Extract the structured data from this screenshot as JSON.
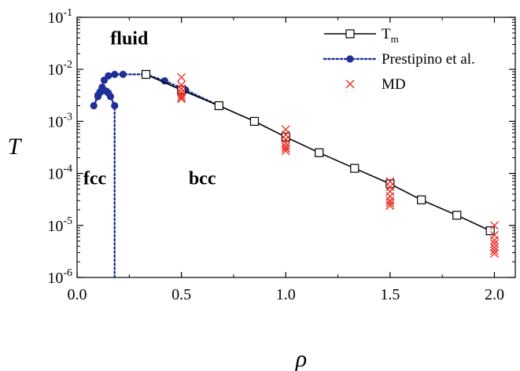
{
  "chart_data": {
    "type": "scatter",
    "xlabel": "ρ",
    "ylabel": "T",
    "xlim": [
      0.0,
      2.1
    ],
    "ylim": [
      1e-06,
      0.1
    ],
    "yscale": "log",
    "grid": false,
    "legend_position": "top-right",
    "x_ticks": [
      0.0,
      0.5,
      1.0,
      1.5,
      2.0
    ],
    "x_tick_labels": [
      "0.0",
      "0.5",
      "1.0",
      "1.5",
      "2.0"
    ],
    "y_ticks": [
      1e-06,
      1e-05,
      0.0001,
      0.001,
      0.01,
      0.1
    ],
    "y_tick_labels": [
      {
        "base": "10",
        "exp": "-6"
      },
      {
        "base": "10",
        "exp": "-5"
      },
      {
        "base": "10",
        "exp": "-4"
      },
      {
        "base": "10",
        "exp": "-3"
      },
      {
        "base": "10",
        "exp": "-2"
      },
      {
        "base": "10",
        "exp": "-1"
      }
    ],
    "annotations": [
      {
        "text": "fluid",
        "x": 0.25,
        "y": 0.03
      },
      {
        "text": "fcc",
        "x": 0.085,
        "y": 6.2e-05
      },
      {
        "text": "bcc",
        "x": 0.6,
        "y": 6.2e-05
      }
    ],
    "series": [
      {
        "name": "T",
        "name_sub": "m",
        "style": "line-open-square",
        "color": "#000000",
        "x": [
          0.33,
          0.5,
          0.68,
          0.85,
          1.0,
          1.16,
          1.33,
          1.5,
          1.65,
          1.82,
          1.98
        ],
        "y": [
          0.008,
          0.004,
          0.002,
          0.001,
          0.0005,
          0.00025,
          0.000125,
          6.3e-05,
          3.1e-05,
          1.57e-05,
          7.9e-06
        ]
      },
      {
        "name": "Prestipino et al.",
        "style": "dotted-filled-circle",
        "color": "#1f2f9a",
        "x": [
          0.18,
          0.18,
          0.16,
          0.15,
          0.14,
          0.13,
          0.12,
          0.11,
          0.1,
          0.08,
          0.1,
          0.11,
          0.12,
          0.13,
          0.15,
          0.18,
          0.22,
          0.33,
          0.42,
          0.52,
          0.68
        ],
        "y": [
          1e-06,
          0.002,
          0.003,
          0.0035,
          0.0038,
          0.0039,
          0.004,
          0.0036,
          0.003,
          0.002,
          0.0032,
          0.0037,
          0.0045,
          0.0062,
          0.0075,
          0.008,
          0.008,
          0.008,
          0.006,
          0.004,
          0.002
        ]
      },
      {
        "name": "MD",
        "style": "cross",
        "color": "#e8281e",
        "x": [
          0.5,
          0.5,
          0.5,
          0.5,
          0.5,
          0.5,
          0.5,
          1.0,
          1.0,
          1.0,
          1.0,
          1.0,
          1.0,
          1.0,
          1.5,
          1.5,
          1.5,
          1.5,
          1.5,
          1.5,
          1.5,
          2.0,
          2.0,
          2.0,
          2.0,
          2.0,
          2.0,
          2.0
        ],
        "y": [
          0.007,
          0.005,
          0.0042,
          0.0036,
          0.0032,
          0.0029,
          0.0027,
          0.0007,
          0.00055,
          0.00045,
          0.00038,
          0.00033,
          0.0003,
          0.00027,
          7e-05,
          5.5e-05,
          4.5e-05,
          3.6e-05,
          3e-05,
          2.7e-05,
          2.4e-05,
          1e-05,
          6.5e-06,
          5.2e-06,
          4.5e-06,
          3.8e-06,
          3.3e-06,
          2.9e-06
        ]
      }
    ]
  }
}
